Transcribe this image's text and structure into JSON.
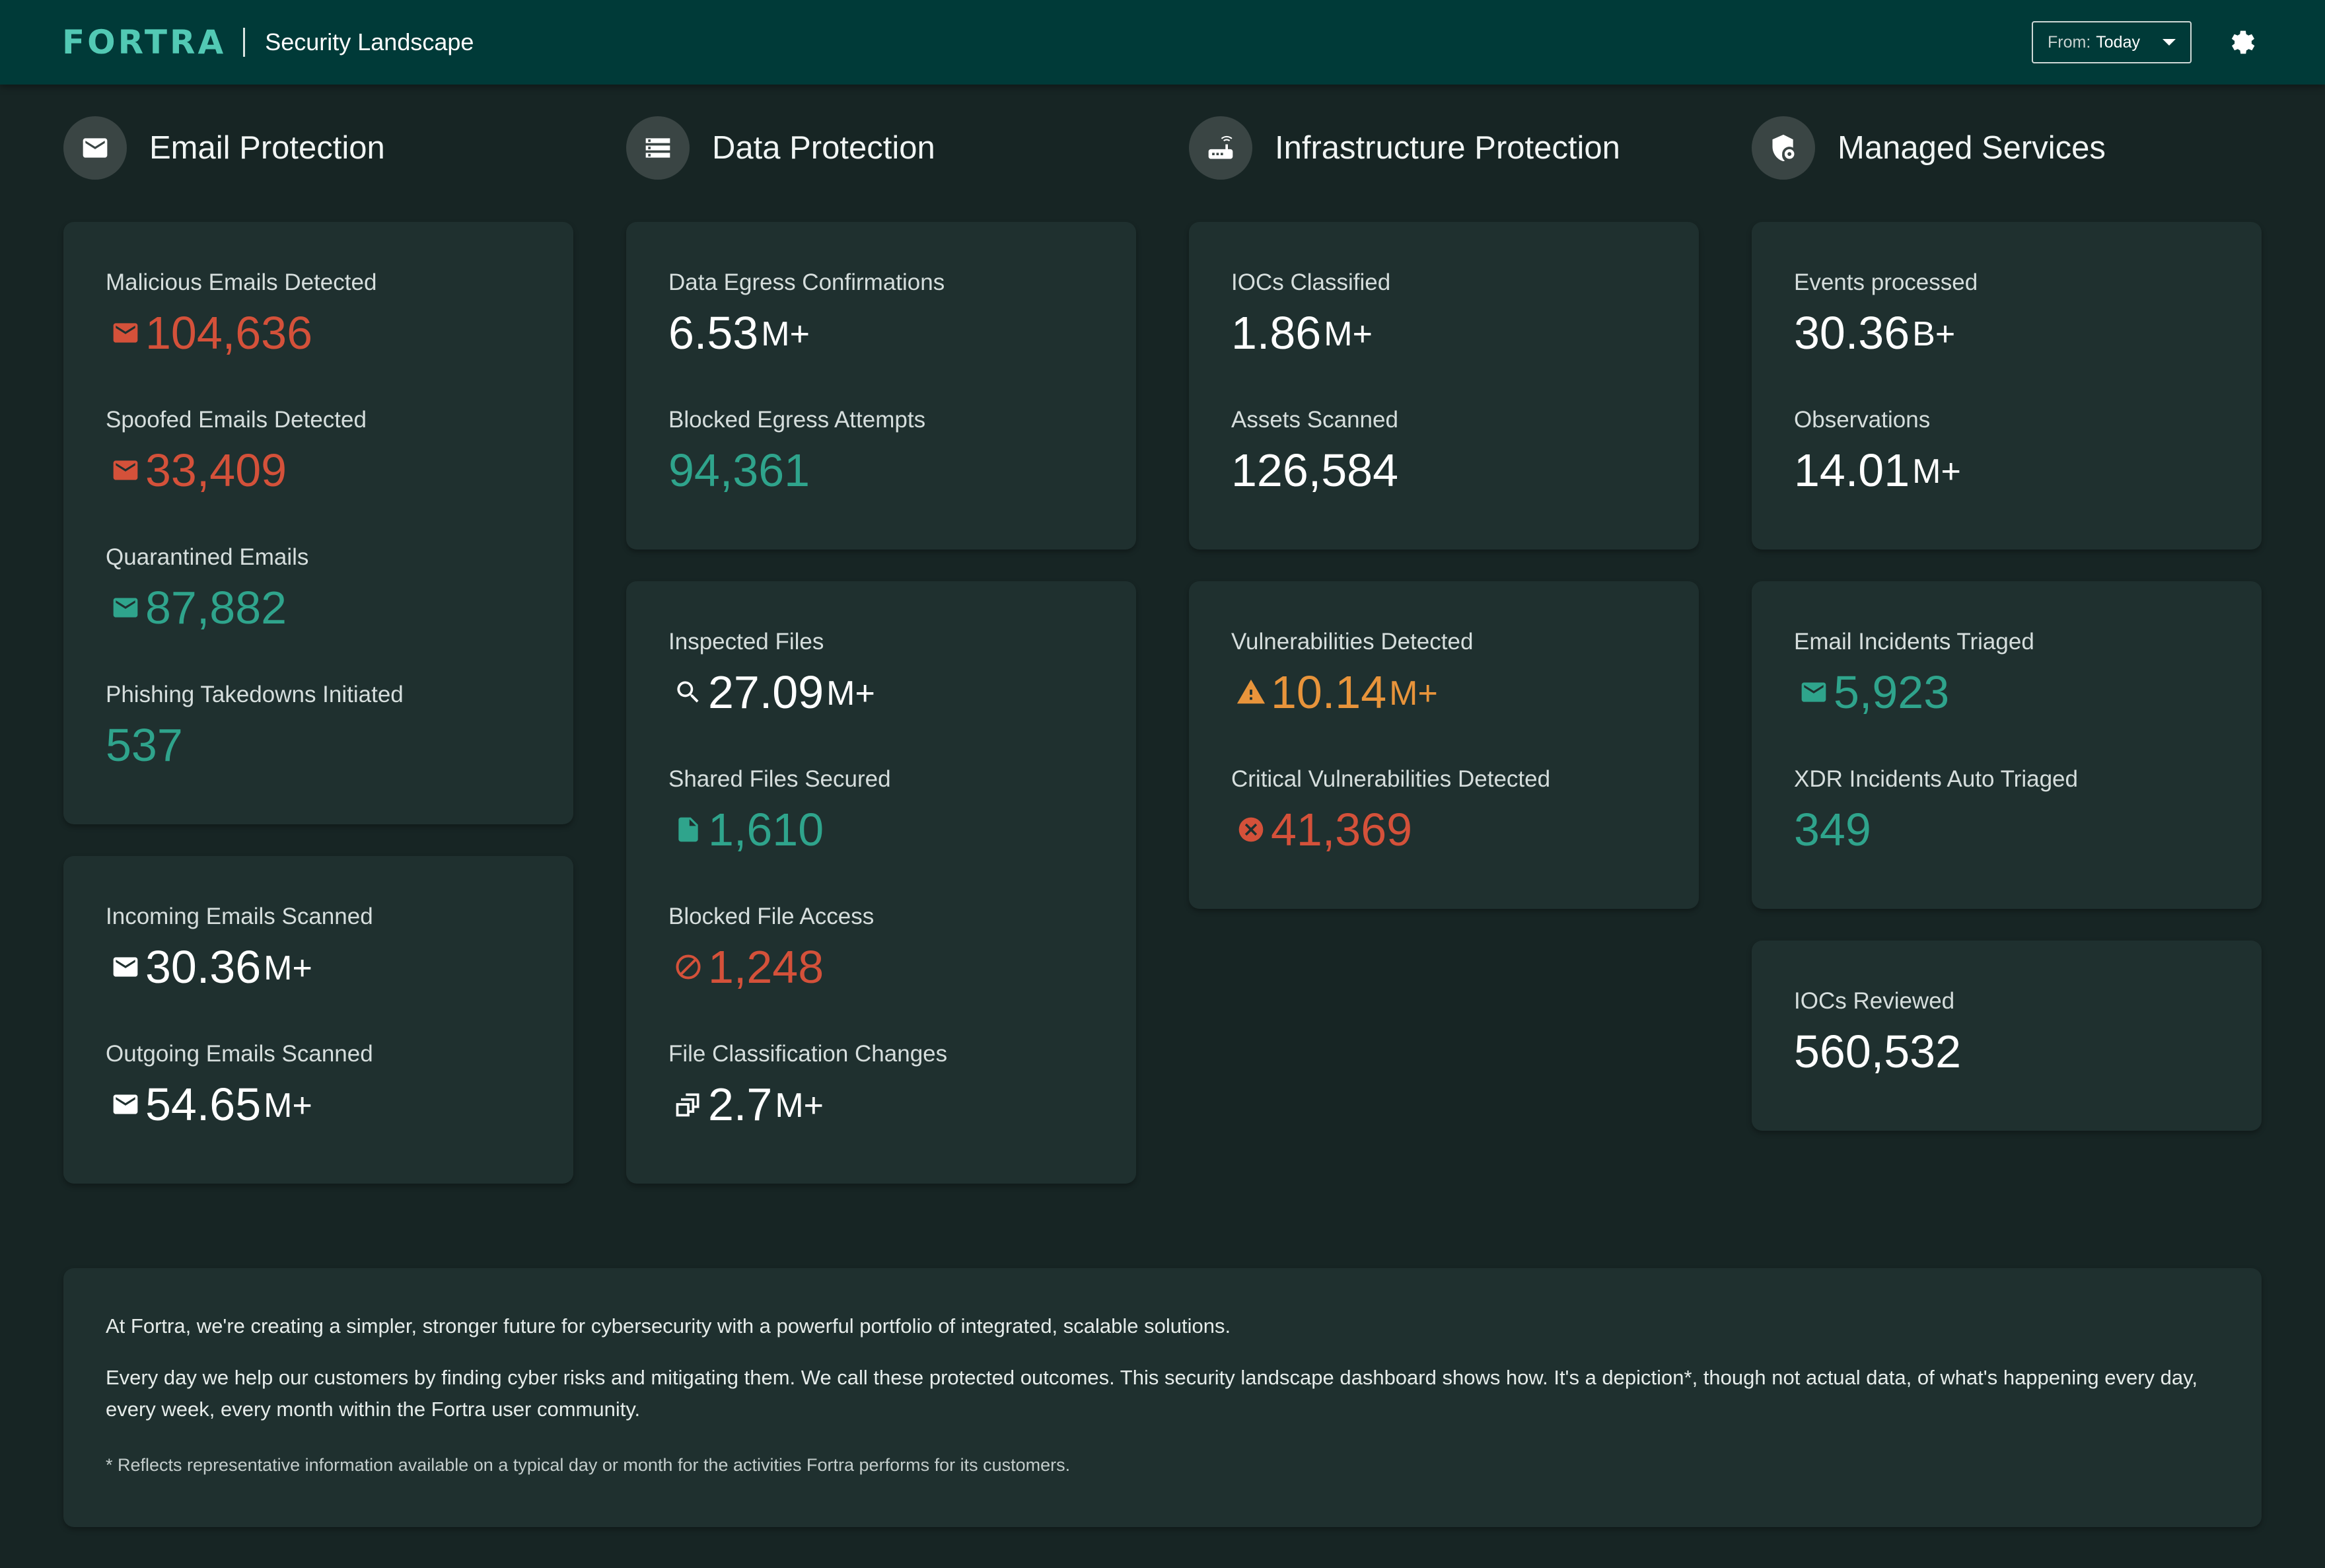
{
  "header": {
    "logo_text": "FORTRA",
    "app_title": "Security Landscape",
    "date_filter": {
      "label": "From:",
      "value": "Today"
    },
    "settings_icon": "gear-icon"
  },
  "colors": {
    "header_bg": "#003a38",
    "page_bg": "#172524",
    "card_bg": "#1f302f",
    "red": "#d4513a",
    "teal": "#2fa48c",
    "orange": "#e8943b",
    "brand": "#52c9b4"
  },
  "sections": [
    {
      "title": "Email Protection",
      "icon": "envelope-icon"
    },
    {
      "title": "Data Protection",
      "icon": "storage-list-icon"
    },
    {
      "title": "Infrastructure Protection",
      "icon": "router-icon"
    },
    {
      "title": "Managed Services",
      "icon": "shield-gear-icon"
    }
  ],
  "email": {
    "card1": [
      {
        "label": "Malicious Emails Detected",
        "value": "104,636",
        "suffix": "",
        "icon": "envelope-icon",
        "color": "red"
      },
      {
        "label": "Spoofed Emails Detected",
        "value": "33,409",
        "suffix": "",
        "icon": "envelope-icon",
        "color": "red"
      },
      {
        "label": "Quarantined Emails",
        "value": "87,882",
        "suffix": "",
        "icon": "envelope-icon",
        "color": "teal"
      },
      {
        "label": "Phishing Takedowns Initiated",
        "value": "537",
        "suffix": "",
        "icon": "",
        "color": "teal"
      }
    ],
    "card2": [
      {
        "label": "Incoming Emails Scanned",
        "value": "30.36",
        "suffix": "M+",
        "icon": "envelope-icon",
        "color": "white"
      },
      {
        "label": "Outgoing Emails Scanned",
        "value": "54.65",
        "suffix": "M+",
        "icon": "envelope-icon",
        "color": "white"
      }
    ]
  },
  "data": {
    "card1": [
      {
        "label": "Data Egress Confirmations",
        "value": "6.53",
        "suffix": "M+",
        "color": "white"
      },
      {
        "label": "Blocked Egress Attempts",
        "value": "94,361",
        "suffix": "",
        "color": "teal"
      }
    ],
    "card2": [
      {
        "label": "Inspected Files",
        "value": "27.09",
        "suffix": "M+",
        "icon": "search-icon",
        "color": "white"
      },
      {
        "label": "Shared Files Secured",
        "value": "1,610",
        "suffix": "",
        "icon": "file-icon",
        "color": "teal"
      },
      {
        "label": "Blocked File Access",
        "value": "1,248",
        "suffix": "",
        "icon": "blocked-icon",
        "color": "red"
      },
      {
        "label": "File Classification Changes",
        "value": "2.7",
        "suffix": "M+",
        "icon": "file-stack-icon",
        "color": "white"
      }
    ]
  },
  "infra": {
    "card1": [
      {
        "label": "IOCs Classified",
        "value": "1.86",
        "suffix": "M+",
        "color": "white"
      },
      {
        "label": "Assets Scanned",
        "value": "126,584",
        "suffix": "",
        "color": "white"
      }
    ],
    "card2": [
      {
        "label": "Vulnerabilities Detected",
        "value": "10.14",
        "suffix": "M+",
        "icon": "warning-icon",
        "color": "orange"
      },
      {
        "label": "Critical Vulnerabilities Detected",
        "value": "41,369",
        "suffix": "",
        "icon": "error-circle-icon",
        "color": "red"
      }
    ]
  },
  "managed": {
    "card1": [
      {
        "label": "Events processed",
        "value": "30.36",
        "suffix": "B+",
        "color": "white"
      },
      {
        "label": "Observations",
        "value": "14.01",
        "suffix": "M+",
        "color": "white"
      }
    ],
    "card2": [
      {
        "label": "Email Incidents Triaged",
        "value": "5,923",
        "suffix": "",
        "icon": "envelope-icon",
        "color": "teal"
      },
      {
        "label": "XDR Incidents Auto Triaged",
        "value": "349",
        "suffix": "",
        "color": "teal"
      }
    ],
    "card3": [
      {
        "label": "IOCs Reviewed",
        "value": "560,532",
        "suffix": "",
        "color": "white"
      }
    ]
  },
  "note": {
    "p1": "At Fortra, we're creating a simpler, stronger future for cybersecurity with a powerful portfolio of integrated, scalable solutions.",
    "p2": "Every day we help our customers by finding cyber risks and mitigating them. We call these protected outcomes. This security landscape dashboard shows how. It's a depiction*, though not actual data, of what's happening every day, every week, every month within the Fortra user community.",
    "footnote": "* Reflects representative information available on a typical day or month for the activities Fortra performs for its customers."
  }
}
